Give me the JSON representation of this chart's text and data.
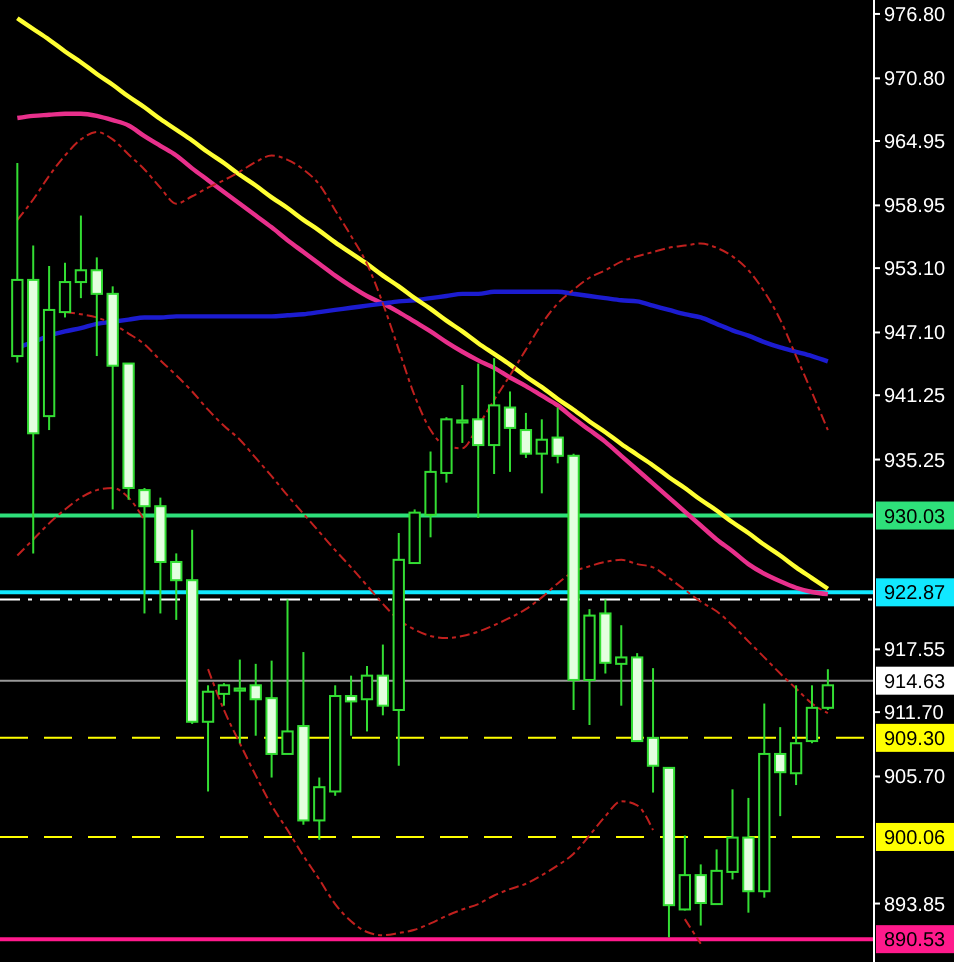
{
  "chart_data": {
    "type": "candlestick",
    "categories": [
      null,
      null,
      null,
      null,
      null,
      null,
      null,
      null,
      null,
      null,
      null,
      null,
      null,
      null,
      null,
      null,
      null,
      null,
      null,
      null,
      null,
      null,
      null,
      null,
      null,
      null,
      null,
      null,
      null,
      null,
      null,
      null,
      null,
      null,
      null,
      null,
      null,
      null,
      null,
      null,
      null,
      null,
      null,
      null,
      null,
      null,
      null,
      null,
      null,
      null,
      null,
      null
    ],
    "ohlc": [
      [
        944.9,
        962.9,
        944.3,
        952.0
      ],
      [
        952.0,
        955.2,
        926.5,
        937.7
      ],
      [
        939.3,
        953.3,
        938.0,
        949.2
      ],
      [
        949.0,
        953.6,
        948.5,
        951.8
      ],
      [
        951.8,
        958.0,
        950.3,
        952.9
      ],
      [
        952.9,
        954.1,
        944.9,
        950.7
      ],
      [
        950.7,
        951.4,
        930.6,
        944.0
      ],
      [
        944.2,
        944.2,
        931.5,
        932.6
      ],
      [
        932.4,
        932.6,
        920.9,
        930.9
      ],
      [
        930.9,
        931.7,
        920.9,
        925.7
      ],
      [
        925.7,
        926.5,
        920.3,
        924.0
      ],
      [
        924.0,
        928.7,
        910.6,
        910.8
      ],
      [
        910.8,
        914.2,
        904.3,
        913.6
      ],
      [
        913.4,
        914.4,
        912.3,
        914.2
      ],
      [
        913.7,
        916.6,
        908.8,
        913.9
      ],
      [
        914.2,
        916.2,
        909.5,
        912.9
      ],
      [
        913.0,
        916.5,
        905.6,
        907.8
      ],
      [
        907.8,
        922.2,
        907.8,
        909.9
      ],
      [
        910.4,
        917.3,
        901.2,
        901.6
      ],
      [
        901.6,
        905.6,
        899.8,
        904.7
      ],
      [
        904.3,
        914.2,
        903.9,
        913.2
      ],
      [
        913.2,
        915.1,
        909.5,
        912.7
      ],
      [
        912.9,
        916.0,
        909.9,
        915.1
      ],
      [
        915.1,
        918.0,
        911.4,
        912.3
      ],
      [
        911.9,
        928.4,
        906.7,
        925.9
      ],
      [
        925.6,
        930.6,
        925.6,
        930.3
      ],
      [
        930.1,
        936.0,
        928.0,
        934.1
      ],
      [
        934.0,
        939.2,
        933.1,
        939.0
      ],
      [
        938.7,
        942.2,
        936.8,
        938.9
      ],
      [
        939.0,
        944.2,
        929.8,
        936.6
      ],
      [
        936.6,
        944.7,
        933.9,
        940.3
      ],
      [
        940.1,
        941.6,
        934.1,
        938.2
      ],
      [
        938.0,
        939.6,
        935.4,
        935.8
      ],
      [
        935.8,
        939.0,
        932.1,
        937.1
      ],
      [
        937.3,
        940.1,
        934.9,
        935.6
      ],
      [
        935.6,
        935.8,
        911.9,
        914.7
      ],
      [
        914.7,
        921.3,
        910.5,
        920.7
      ],
      [
        920.9,
        922.2,
        915.3,
        916.3
      ],
      [
        916.2,
        919.8,
        912.3,
        916.8
      ],
      [
        916.8,
        917.2,
        909.0,
        909.0
      ],
      [
        909.3,
        915.8,
        904.2,
        906.7
      ],
      [
        906.5,
        906.5,
        890.7,
        893.7
      ],
      [
        893.3,
        900.2,
        893.2,
        896.5
      ],
      [
        896.5,
        897.5,
        891.8,
        893.9
      ],
      [
        893.8,
        898.9,
        893.8,
        896.9
      ],
      [
        896.8,
        904.5,
        896.1,
        900.0
      ],
      [
        900.0,
        903.7,
        893.0,
        895.0
      ],
      [
        895.0,
        912.5,
        894.4,
        907.8
      ],
      [
        907.8,
        910.3,
        902.0,
        906.1
      ],
      [
        906.0,
        914.2,
        904.9,
        908.8
      ],
      [
        909.0,
        914.2,
        908.8,
        912.1
      ],
      [
        912.1,
        915.7,
        911.9,
        914.2
      ]
    ],
    "series": [
      {
        "type": "line",
        "color": "#e8308c",
        "line_style": "solid",
        "values": [
          967.1,
          967.3,
          967.4,
          967.5,
          967.5,
          967.3,
          966.9,
          966.4,
          965.4,
          964.5,
          963.6,
          962.4,
          961.3,
          960.2,
          959.1,
          958.0,
          956.9,
          955.7,
          954.6,
          953.5,
          952.4,
          951.4,
          950.5,
          949.8,
          949.0,
          948.1,
          947.2,
          946.2,
          945.3,
          944.5,
          943.8,
          942.9,
          942.1,
          941.2,
          940.3,
          939.1,
          938.0,
          936.9,
          935.6,
          934.3,
          933.0,
          931.7,
          930.4,
          929.1,
          927.8,
          926.7,
          925.5,
          924.6,
          923.9,
          923.3,
          922.9,
          922.7
        ]
      },
      {
        "type": "line",
        "color": "#1c1cd0",
        "line_style": "solid",
        "values": [
          945.7,
          946.2,
          946.8,
          947.2,
          947.5,
          947.9,
          948.1,
          948.3,
          948.5,
          948.5,
          948.6,
          948.6,
          948.6,
          948.6,
          948.6,
          948.6,
          948.6,
          948.7,
          948.8,
          949.0,
          949.2,
          949.4,
          949.6,
          949.8,
          950.0,
          950.1,
          950.3,
          950.5,
          950.7,
          950.7,
          950.9,
          950.9,
          950.9,
          950.9,
          950.9,
          950.7,
          950.5,
          950.3,
          950.1,
          950.0,
          949.6,
          949.2,
          948.8,
          948.5,
          947.9,
          947.3,
          946.8,
          946.2,
          945.7,
          945.3,
          944.9,
          944.4
        ]
      },
      {
        "type": "line",
        "color": "#ffff33",
        "line_style": "solid",
        "values": [
          976.4,
          975.4,
          974.4,
          973.3,
          972.3,
          971.2,
          970.2,
          969.1,
          968.1,
          967.0,
          966.0,
          965.0,
          963.9,
          962.9,
          961.8,
          960.8,
          959.7,
          958.7,
          957.6,
          956.6,
          955.5,
          954.5,
          953.5,
          952.4,
          951.4,
          950.3,
          949.3,
          948.2,
          947.2,
          946.1,
          945.1,
          944.1,
          943.0,
          942.0,
          940.9,
          939.9,
          938.8,
          937.8,
          936.7,
          935.7,
          934.7,
          933.6,
          932.6,
          931.5,
          930.5,
          929.4,
          928.4,
          927.3,
          926.3,
          925.2,
          924.2,
          923.2
        ]
      },
      {
        "type": "line",
        "color": "#c0201e",
        "line_style": "dashed",
        "values": [
          957.6,
          959.5,
          961.7,
          963.6,
          965.1,
          965.8,
          965.1,
          963.7,
          962.3,
          960.6,
          959.1,
          959.8,
          960.6,
          961.3,
          962.1,
          963.0,
          963.6,
          963.2,
          962.3,
          960.9,
          958.5,
          956.1,
          953.5,
          949.8,
          945.5,
          941.2,
          938.0,
          936.5,
          936.3,
          938.4,
          940.8,
          943.1,
          945.5,
          947.9,
          949.8,
          951.1,
          952.2,
          952.9,
          953.7,
          954.2,
          954.6,
          955.0,
          955.2,
          955.4,
          955.0,
          954.2,
          952.9,
          950.9,
          948.3,
          944.9,
          941.5,
          938.0
        ]
      },
      {
        "type": "line",
        "color": "#c0201e",
        "line_style": "dashed",
        "values": [
          null,
          null,
          null,
          949.0,
          948.8,
          948.5,
          947.9,
          947.0,
          946.0,
          944.5,
          943.1,
          941.6,
          939.9,
          938.4,
          937.1,
          935.4,
          933.7,
          931.9,
          930.2,
          928.5,
          926.8,
          925.2,
          923.5,
          921.8,
          920.3,
          919.4,
          918.8,
          918.6,
          918.8,
          919.2,
          919.8,
          920.5,
          921.3,
          922.4,
          923.7,
          924.8,
          925.3,
          925.7,
          925.9,
          925.5,
          925.2,
          924.2,
          923.1,
          922.0,
          921.1,
          919.8,
          918.3,
          916.8,
          915.3,
          913.9,
          912.5,
          911.6
        ]
      },
      {
        "type": "line",
        "color": "#c0201e",
        "line_style": "dashed",
        "values": [
          926.3,
          927.8,
          929.3,
          930.6,
          931.7,
          932.4,
          932.6,
          931.7,
          929.6,
          null,
          null,
          null,
          915.7,
          911.9,
          908.8,
          905.8,
          903.0,
          900.7,
          898.3,
          896.1,
          893.8,
          892.2,
          891.2,
          890.9,
          891.1,
          891.4,
          892.0,
          892.7,
          893.3,
          893.8,
          894.6,
          895.2,
          895.7,
          896.5,
          897.4,
          898.5,
          900.2,
          902.0,
          903.4,
          903.0,
          900.7,
          null,
          892.4,
          890.1,
          null,
          null,
          null,
          null,
          null,
          null,
          null,
          null
        ]
      }
    ],
    "ref_lines": [
      {
        "axis": "y",
        "value": 930.03,
        "label": "930.03",
        "color": "#2ee07a",
        "line_style": "solid"
      },
      {
        "axis": "y",
        "value": 922.87,
        "label": "922.87",
        "color": "#11e8ff",
        "line_style": "solid"
      },
      {
        "axis": "y",
        "value": 922.2,
        "color": "#ffffff",
        "line_style": "dashed"
      },
      {
        "axis": "y",
        "value": 914.63,
        "label": "914.63",
        "color": "#ffffff",
        "line_style": "solid"
      },
      {
        "axis": "y",
        "value": 909.3,
        "label": "909.30",
        "color": "#ffff00",
        "line_style": "dashed"
      },
      {
        "axis": "y",
        "value": 900.06,
        "label": "900.06",
        "color": "#ffff00",
        "line_style": "dashed"
      },
      {
        "axis": "y",
        "value": 890.53,
        "label": "890.53",
        "color": "#ff1a8c",
        "line_style": "solid"
      }
    ],
    "ylim": [
      888.4,
      978.1
    ],
    "yticks": [
      {
        "value": 976.8,
        "label": "976.80"
      },
      {
        "value": 970.8,
        "label": "970.80"
      },
      964.95,
      958.95,
      {
        "value": 953.1,
        "label": "953.10"
      },
      {
        "value": 947.1,
        "label": "947.10"
      },
      941.25,
      935.25,
      917.55,
      {
        "value": 911.7,
        "label": "911.70"
      },
      {
        "value": 905.7,
        "label": "905.70"
      },
      893.85
    ],
    "tick_labels": "y",
    "grid": false
  }
}
